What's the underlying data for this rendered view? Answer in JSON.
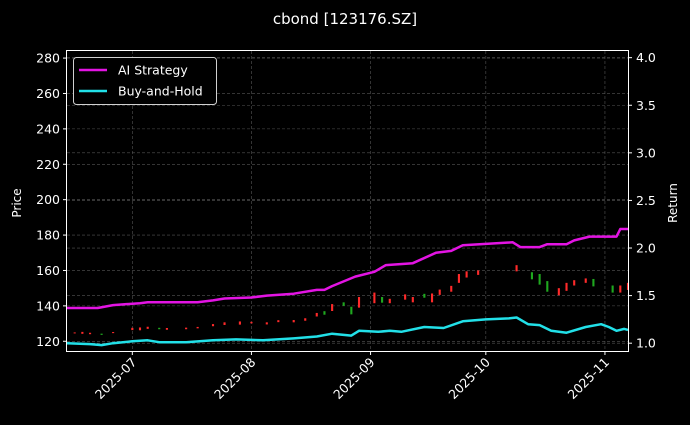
{
  "chart_data": {
    "type": "line",
    "title": "cbond [123176.SZ]",
    "ylabel": "Price",
    "y2label": "Return",
    "ylim": [
      114.5,
      284
    ],
    "y2lim": [
      0.918,
      4.07
    ],
    "xlim": [
      "2025-06-14",
      "2025-11-07"
    ],
    "grid": true,
    "legend_position": "top-left",
    "x_ticks": [
      {
        "date": "2025-07-01",
        "label": "2025-07"
      },
      {
        "date": "2025-08-01",
        "label": "2025-08"
      },
      {
        "date": "2025-09-01",
        "label": "2025-09"
      },
      {
        "date": "2025-10-01",
        "label": "2025-10"
      },
      {
        "date": "2025-11-01",
        "label": "2025-11"
      }
    ],
    "y_ticks": [
      "120",
      "140",
      "160",
      "180",
      "200",
      "220",
      "240",
      "260",
      "280"
    ],
    "y2_ticks": [
      "1.0",
      "1.5",
      "2.0",
      "2.5",
      "3.0",
      "3.5",
      "4.0"
    ],
    "colors": {
      "ai_strategy": "#e314e3",
      "buy_and_hold": "#22e0e8",
      "candle_up": "#ff2a2a",
      "candle_down": "#1fa81f"
    },
    "series": [
      {
        "name": "AI Strategy",
        "axis": "return",
        "points": [
          [
            "2025-06-14",
            1.37
          ],
          [
            "2025-06-22",
            1.37
          ],
          [
            "2025-06-26",
            1.4
          ],
          [
            "2025-07-03",
            1.42
          ],
          [
            "2025-07-05",
            1.43
          ],
          [
            "2025-07-18",
            1.43
          ],
          [
            "2025-07-22",
            1.45
          ],
          [
            "2025-07-25",
            1.47
          ],
          [
            "2025-08-01",
            1.48
          ],
          [
            "2025-08-05",
            1.5
          ],
          [
            "2025-08-12",
            1.52
          ],
          [
            "2025-08-18",
            1.56
          ],
          [
            "2025-08-20",
            1.56
          ],
          [
            "2025-08-22",
            1.6
          ],
          [
            "2025-08-28",
            1.7
          ],
          [
            "2025-09-02",
            1.75
          ],
          [
            "2025-09-05",
            1.82
          ],
          [
            "2025-09-12",
            1.84
          ],
          [
            "2025-09-18",
            1.95
          ],
          [
            "2025-09-22",
            1.97
          ],
          [
            "2025-09-25",
            2.03
          ],
          [
            "2025-10-08",
            2.06
          ],
          [
            "2025-10-10",
            2.01
          ],
          [
            "2025-10-15",
            2.01
          ],
          [
            "2025-10-17",
            2.04
          ],
          [
            "2025-10-22",
            2.04
          ],
          [
            "2025-10-24",
            2.08
          ],
          [
            "2025-10-28",
            2.12
          ],
          [
            "2025-11-04",
            2.12
          ],
          [
            "2025-11-05",
            2.2
          ],
          [
            "2025-11-07",
            2.2
          ]
        ]
      },
      {
        "name": "Buy-and-Hold",
        "axis": "return",
        "points": [
          [
            "2025-06-14",
            1.0
          ],
          [
            "2025-06-20",
            0.99
          ],
          [
            "2025-06-23",
            0.98
          ],
          [
            "2025-06-26",
            1.0
          ],
          [
            "2025-07-01",
            1.02
          ],
          [
            "2025-07-05",
            1.03
          ],
          [
            "2025-07-08",
            1.01
          ],
          [
            "2025-07-15",
            1.01
          ],
          [
            "2025-07-22",
            1.03
          ],
          [
            "2025-07-28",
            1.04
          ],
          [
            "2025-08-04",
            1.03
          ],
          [
            "2025-08-12",
            1.05
          ],
          [
            "2025-08-18",
            1.07
          ],
          [
            "2025-08-22",
            1.1
          ],
          [
            "2025-08-27",
            1.08
          ],
          [
            "2025-08-29",
            1.13
          ],
          [
            "2025-09-03",
            1.12
          ],
          [
            "2025-09-06",
            1.13
          ],
          [
            "2025-09-09",
            1.12
          ],
          [
            "2025-09-15",
            1.17
          ],
          [
            "2025-09-20",
            1.16
          ],
          [
            "2025-09-25",
            1.23
          ],
          [
            "2025-10-01",
            1.25
          ],
          [
            "2025-10-07",
            1.26
          ],
          [
            "2025-10-09",
            1.27
          ],
          [
            "2025-10-12",
            1.2
          ],
          [
            "2025-10-15",
            1.19
          ],
          [
            "2025-10-18",
            1.13
          ],
          [
            "2025-10-22",
            1.11
          ],
          [
            "2025-10-27",
            1.17
          ],
          [
            "2025-10-31",
            1.2
          ],
          [
            "2025-11-02",
            1.17
          ],
          [
            "2025-11-04",
            1.13
          ],
          [
            "2025-11-06",
            1.15
          ],
          [
            "2025-11-07",
            1.14
          ]
        ]
      }
    ],
    "candles": [
      {
        "date": "2025-06-16",
        "open": 124.5,
        "close": 125.0
      },
      {
        "date": "2025-06-18",
        "open": 124.2,
        "close": 125.3
      },
      {
        "date": "2025-06-20",
        "open": 124.0,
        "close": 124.8
      },
      {
        "date": "2025-06-23",
        "open": 124.3,
        "close": 123.6
      },
      {
        "date": "2025-06-26",
        "open": 124.6,
        "close": 125.2
      },
      {
        "date": "2025-07-01",
        "open": 126.3,
        "close": 127.6
      },
      {
        "date": "2025-07-03",
        "open": 126.2,
        "close": 127.8
      },
      {
        "date": "2025-07-05",
        "open": 127.0,
        "close": 128.2
      },
      {
        "date": "2025-07-08",
        "open": 127.6,
        "close": 126.8
      },
      {
        "date": "2025-07-10",
        "open": 126.5,
        "close": 127.5
      },
      {
        "date": "2025-07-15",
        "open": 126.8,
        "close": 127.7
      },
      {
        "date": "2025-07-18",
        "open": 127.3,
        "close": 128.1
      },
      {
        "date": "2025-07-22",
        "open": 128.5,
        "close": 129.7
      },
      {
        "date": "2025-07-25",
        "open": 129.2,
        "close": 130.7
      },
      {
        "date": "2025-07-29",
        "open": 129.4,
        "close": 131.2
      },
      {
        "date": "2025-08-01",
        "open": 130.1,
        "close": 131.0
      },
      {
        "date": "2025-08-05",
        "open": 129.5,
        "close": 130.7
      },
      {
        "date": "2025-08-08",
        "open": 130.8,
        "close": 131.9
      },
      {
        "date": "2025-08-12",
        "open": 130.7,
        "close": 132.0
      },
      {
        "date": "2025-08-15",
        "open": 131.6,
        "close": 133.0
      },
      {
        "date": "2025-08-18",
        "open": 134.0,
        "close": 136.0
      },
      {
        "date": "2025-08-20",
        "open": 137.0,
        "close": 135.0
      },
      {
        "date": "2025-08-22",
        "open": 137.1,
        "close": 141.0
      },
      {
        "date": "2025-08-25",
        "open": 142.0,
        "close": 140.0
      },
      {
        "date": "2025-08-27",
        "open": 139.5,
        "close": 135.2
      },
      {
        "date": "2025-08-29",
        "open": 139.0,
        "close": 145.0
      },
      {
        "date": "2025-09-02",
        "open": 141.5,
        "close": 147.5
      },
      {
        "date": "2025-09-04",
        "open": 145.0,
        "close": 141.8
      },
      {
        "date": "2025-09-06",
        "open": 141.5,
        "close": 144.0
      },
      {
        "date": "2025-09-10",
        "open": 143.5,
        "close": 146.5
      },
      {
        "date": "2025-09-12",
        "open": 142.0,
        "close": 145.0
      },
      {
        "date": "2025-09-15",
        "open": 146.8,
        "close": 144.6
      },
      {
        "date": "2025-09-17",
        "open": 142.0,
        "close": 147.0
      },
      {
        "date": "2025-09-19",
        "open": 146.2,
        "close": 149.2
      },
      {
        "date": "2025-09-22",
        "open": 148.0,
        "close": 151.3
      },
      {
        "date": "2025-09-24",
        "open": 153.0,
        "close": 158.0
      },
      {
        "date": "2025-09-26",
        "open": 156.0,
        "close": 159.5
      },
      {
        "date": "2025-09-29",
        "open": 157.5,
        "close": 160.0
      },
      {
        "date": "2025-10-09",
        "open": 159.5,
        "close": 163.0
      },
      {
        "date": "2025-10-13",
        "open": 159.0,
        "close": 155.0
      },
      {
        "date": "2025-10-15",
        "open": 158.0,
        "close": 152.0
      },
      {
        "date": "2025-10-17",
        "open": 154.0,
        "close": 148.0
      },
      {
        "date": "2025-10-20",
        "open": 146.0,
        "close": 150.0
      },
      {
        "date": "2025-10-22",
        "open": 148.5,
        "close": 153.0
      },
      {
        "date": "2025-10-24",
        "open": 151.5,
        "close": 154.5
      },
      {
        "date": "2025-10-27",
        "open": 153.0,
        "close": 155.5
      },
      {
        "date": "2025-10-29",
        "open": 155.2,
        "close": 151.0
      },
      {
        "date": "2025-11-03",
        "open": 151.5,
        "close": 147.5
      },
      {
        "date": "2025-11-05",
        "open": 147.5,
        "close": 151.5
      },
      {
        "date": "2025-11-07",
        "open": 149.0,
        "close": 153.0
      }
    ]
  }
}
